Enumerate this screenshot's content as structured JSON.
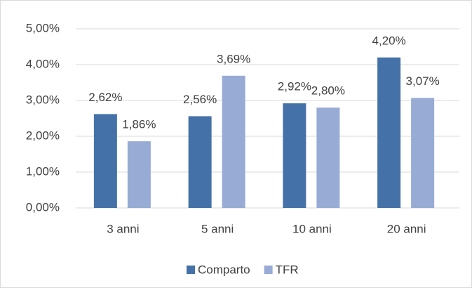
{
  "chart_data": {
    "type": "bar",
    "categories": [
      "3 anni",
      "5 anni",
      "10 anni",
      "20 anni"
    ],
    "series": [
      {
        "name": "Comparto",
        "color": "#4472a8",
        "values": [
          2.62,
          2.56,
          2.92,
          4.2
        ],
        "value_labels": [
          "2,62%",
          "2,56%",
          "2,92%",
          "4,20%"
        ]
      },
      {
        "name": "TFR",
        "color": "#97abd5",
        "values": [
          1.86,
          3.69,
          2.8,
          3.07
        ],
        "value_labels": [
          "1,86%",
          "3,69%",
          "2,80%",
          "3,07%"
        ]
      }
    ],
    "ylim": [
      0,
      5
    ],
    "yticks": [
      {
        "value": 0,
        "label": "0,00%"
      },
      {
        "value": 1,
        "label": "1,00%"
      },
      {
        "value": 2,
        "label": "2,00%"
      },
      {
        "value": 3,
        "label": "3,00%"
      },
      {
        "value": 4,
        "label": "4,00%"
      },
      {
        "value": 5,
        "label": "5,00%"
      }
    ],
    "grid": true,
    "legend": "bottom"
  }
}
